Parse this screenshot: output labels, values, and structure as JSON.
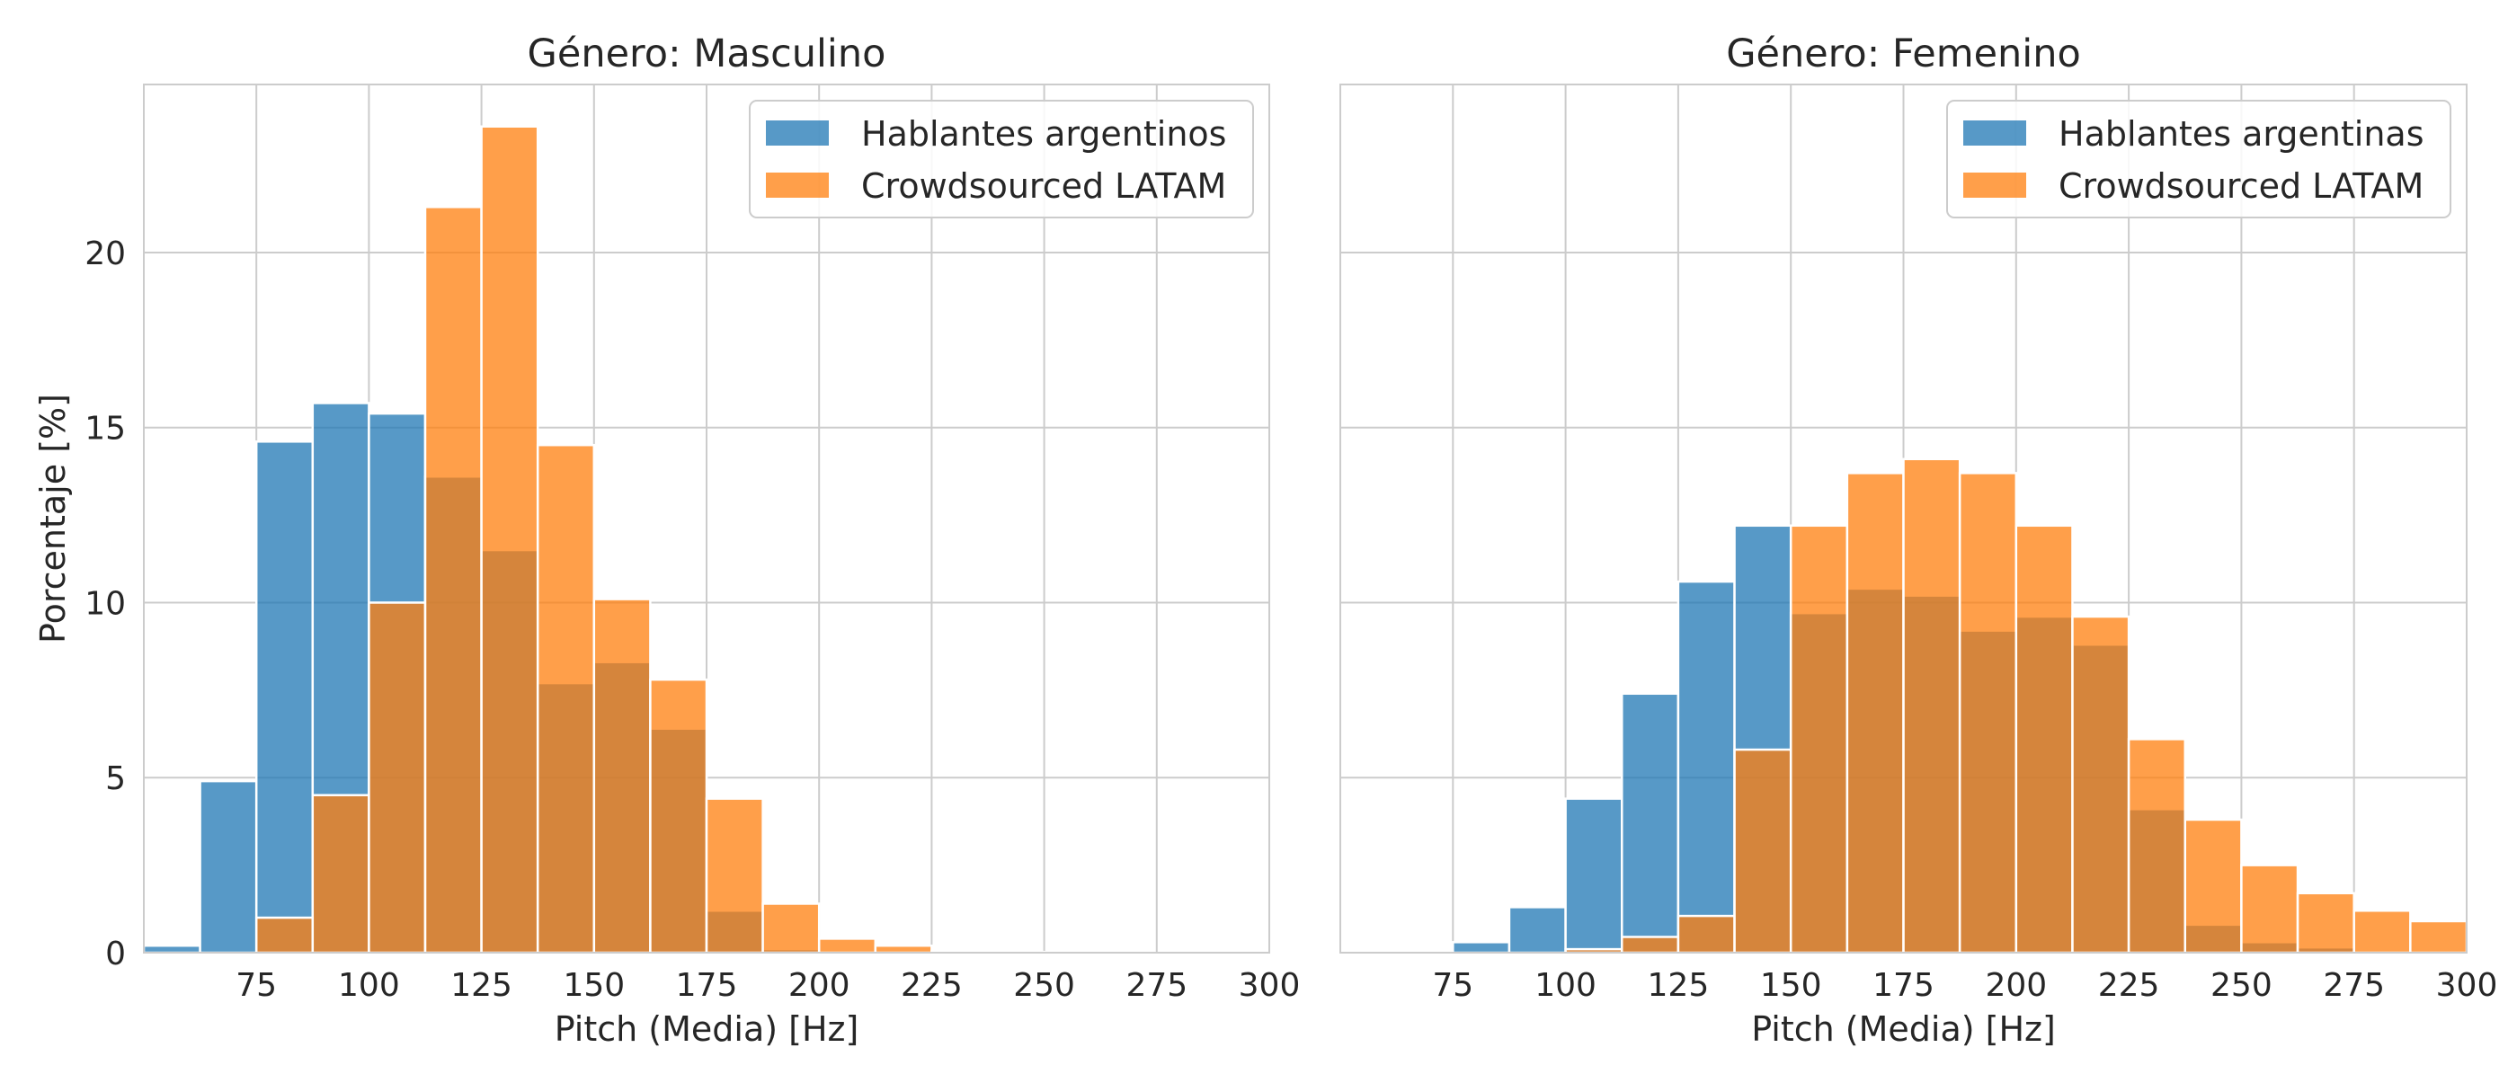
{
  "chart_data": [
    {
      "type": "bar",
      "title": "Género: Masculino",
      "xlabel": "Pitch (Media) [Hz]",
      "ylabel": "Porcentaje [%]",
      "xlim": [
        50,
        300
      ],
      "ylim": [
        0,
        24.8
      ],
      "xticks": [
        "75",
        "100",
        "125",
        "150",
        "175",
        "200",
        "225",
        "250",
        "275",
        "300"
      ],
      "yticks": [
        "0",
        "5",
        "10",
        "15",
        "20"
      ],
      "grid": true,
      "legend_position": "top-right",
      "bin_edges": [
        50,
        62.5,
        75,
        87.5,
        100,
        112.5,
        125,
        137.5,
        150,
        162.5,
        175,
        187.5,
        200,
        212.5,
        225,
        237.5,
        250,
        262.5,
        275,
        287.5,
        300
      ],
      "series": [
        {
          "name": "Hablantes argentinos",
          "color": "#1f77b4",
          "values": [
            0.2,
            4.9,
            14.6,
            15.7,
            15.4,
            13.6,
            11.5,
            7.7,
            8.3,
            6.4,
            1.2,
            0.1,
            0,
            0,
            0,
            0,
            0,
            0,
            0,
            0
          ]
        },
        {
          "name": "Crowdsourced LATAM",
          "color": "#ff7f0e",
          "values": [
            0,
            0,
            1.0,
            4.5,
            10.0,
            21.3,
            23.6,
            14.5,
            10.1,
            7.8,
            4.4,
            1.4,
            0.4,
            0.2,
            0.05,
            0.02,
            0.01,
            0,
            0,
            0
          ]
        }
      ]
    },
    {
      "type": "bar",
      "title": "Género: Femenino",
      "xlabel": "Pitch (Media) [Hz]",
      "ylabel": "",
      "xlim": [
        50,
        300
      ],
      "ylim": [
        0,
        24.8
      ],
      "xticks": [
        "75",
        "100",
        "125",
        "150",
        "175",
        "200",
        "225",
        "250",
        "275",
        "300"
      ],
      "yticks": [],
      "grid": true,
      "legend_position": "top-right",
      "bin_edges": [
        50,
        62.5,
        75,
        87.5,
        100,
        112.5,
        125,
        137.5,
        150,
        162.5,
        175,
        187.5,
        200,
        212.5,
        225,
        237.5,
        250,
        262.5,
        275,
        287.5,
        300
      ],
      "series": [
        {
          "name": "Hablantes argentinas",
          "color": "#1f77b4",
          "values": [
            0,
            0,
            0.3,
            1.3,
            4.4,
            7.4,
            10.6,
            12.2,
            9.7,
            10.4,
            10.2,
            9.2,
            9.6,
            8.8,
            4.1,
            0.8,
            0.3,
            0.15,
            0,
            0
          ]
        },
        {
          "name": "Crowdsourced LATAM",
          "color": "#ff7f0e",
          "values": [
            0,
            0,
            0,
            0,
            0.1,
            0.45,
            1.05,
            5.8,
            12.2,
            13.7,
            14.1,
            13.7,
            12.2,
            9.6,
            6.1,
            3.8,
            2.5,
            1.7,
            1.2,
            0.9
          ]
        }
      ]
    }
  ]
}
